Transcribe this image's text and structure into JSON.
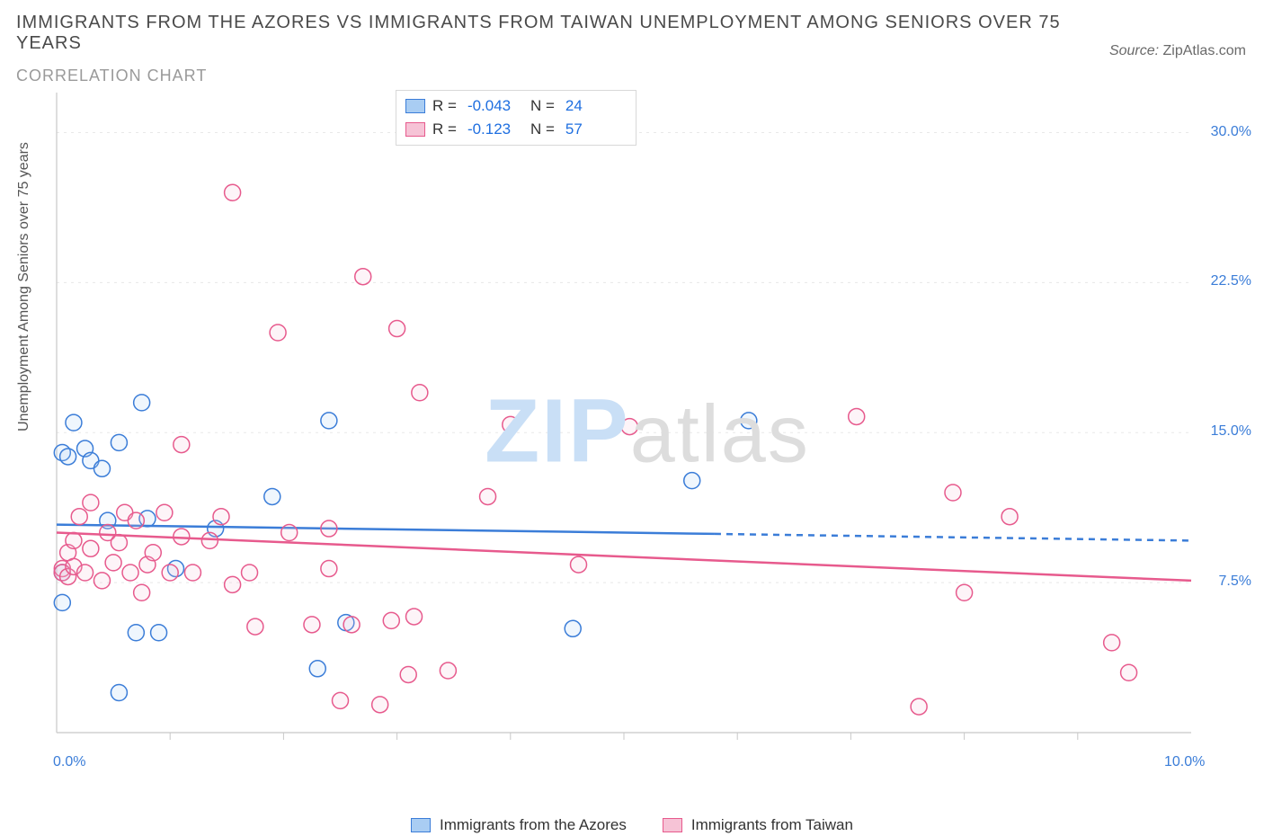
{
  "title": "IMMIGRANTS FROM THE AZORES VS IMMIGRANTS FROM TAIWAN UNEMPLOYMENT AMONG SENIORS OVER 75 YEARS",
  "subtitle": "CORRELATION CHART",
  "source_label": "Source:",
  "source_name": "ZipAtlas.com",
  "ylabel": "Unemployment Among Seniors over 75 years",
  "watermark_a": "ZIP",
  "watermark_b": "atlas",
  "chart": {
    "type": "scatter",
    "xlim": [
      0.0,
      10.0
    ],
    "ylim": [
      0.0,
      32.0
    ],
    "x_ticks": [
      0.0,
      10.0
    ],
    "x_tick_labels": [
      "0.0%",
      "10.0%"
    ],
    "y_ticks": [
      7.5,
      15.0,
      22.5,
      30.0
    ],
    "y_tick_labels": [
      "7.5%",
      "15.0%",
      "22.5%",
      "30.0%"
    ],
    "grid_color": "#e8e8e8",
    "axis_color": "#c8c8c8",
    "tick_label_color": "#3b7dd8",
    "background_color": "#ffffff",
    "marker_radius": 9,
    "marker_stroke_width": 1.5,
    "marker_fill_opacity": 0.18,
    "line_width": 2.5,
    "series": [
      {
        "key": "azores",
        "label": "Immigrants from the Azores",
        "color_stroke": "#3b7dd8",
        "color_fill": "#a9cdf3",
        "R": "-0.043",
        "N": "24",
        "trend": {
          "y_at_x0": 10.4,
          "y_at_x10": 9.6,
          "solid_until_x": 5.8
        },
        "points": [
          {
            "x": 0.05,
            "y": 8.0
          },
          {
            "x": 0.05,
            "y": 14.0
          },
          {
            "x": 0.1,
            "y": 13.8
          },
          {
            "x": 0.15,
            "y": 15.5
          },
          {
            "x": 0.25,
            "y": 14.2
          },
          {
            "x": 0.3,
            "y": 13.6
          },
          {
            "x": 0.45,
            "y": 10.6
          },
          {
            "x": 0.55,
            "y": 2.0
          },
          {
            "x": 0.55,
            "y": 14.5
          },
          {
            "x": 0.7,
            "y": 5.0
          },
          {
            "x": 0.75,
            "y": 16.5
          },
          {
            "x": 0.8,
            "y": 10.7
          },
          {
            "x": 0.9,
            "y": 5.0
          },
          {
            "x": 1.05,
            "y": 8.2
          },
          {
            "x": 1.4,
            "y": 10.2
          },
          {
            "x": 1.9,
            "y": 11.8
          },
          {
            "x": 2.3,
            "y": 3.2
          },
          {
            "x": 2.55,
            "y": 5.5
          },
          {
            "x": 2.4,
            "y": 15.6
          },
          {
            "x": 4.55,
            "y": 5.2
          },
          {
            "x": 5.6,
            "y": 12.6
          },
          {
            "x": 6.1,
            "y": 15.6
          },
          {
            "x": 0.05,
            "y": 6.5
          },
          {
            "x": 0.4,
            "y": 13.2
          }
        ]
      },
      {
        "key": "taiwan",
        "label": "Immigrants from Taiwan",
        "color_stroke": "#e75a8d",
        "color_fill": "#f6c3d6",
        "R": "-0.123",
        "N": "57",
        "trend": {
          "y_at_x0": 10.0,
          "y_at_x10": 7.6,
          "solid_until_x": 10.0
        },
        "points": [
          {
            "x": 0.05,
            "y": 8.2
          },
          {
            "x": 0.05,
            "y": 8.0
          },
          {
            "x": 0.1,
            "y": 7.8
          },
          {
            "x": 0.1,
            "y": 9.0
          },
          {
            "x": 0.15,
            "y": 8.3
          },
          {
            "x": 0.15,
            "y": 9.6
          },
          {
            "x": 0.2,
            "y": 10.8
          },
          {
            "x": 0.25,
            "y": 8.0
          },
          {
            "x": 0.3,
            "y": 9.2
          },
          {
            "x": 0.3,
            "y": 11.5
          },
          {
            "x": 0.4,
            "y": 7.6
          },
          {
            "x": 0.45,
            "y": 10.0
          },
          {
            "x": 0.5,
            "y": 8.5
          },
          {
            "x": 0.55,
            "y": 9.5
          },
          {
            "x": 0.6,
            "y": 11.0
          },
          {
            "x": 0.65,
            "y": 8.0
          },
          {
            "x": 0.7,
            "y": 10.6
          },
          {
            "x": 0.75,
            "y": 7.0
          },
          {
            "x": 0.8,
            "y": 8.4
          },
          {
            "x": 0.85,
            "y": 9.0
          },
          {
            "x": 0.95,
            "y": 11.0
          },
          {
            "x": 1.0,
            "y": 8.0
          },
          {
            "x": 1.1,
            "y": 9.8
          },
          {
            "x": 1.1,
            "y": 14.4
          },
          {
            "x": 1.2,
            "y": 8.0
          },
          {
            "x": 1.35,
            "y": 9.6
          },
          {
            "x": 1.45,
            "y": 10.8
          },
          {
            "x": 1.55,
            "y": 7.4
          },
          {
            "x": 1.55,
            "y": 27.0
          },
          {
            "x": 1.7,
            "y": 8.0
          },
          {
            "x": 1.75,
            "y": 5.3
          },
          {
            "x": 1.95,
            "y": 20.0
          },
          {
            "x": 2.05,
            "y": 10.0
          },
          {
            "x": 2.25,
            "y": 5.4
          },
          {
            "x": 2.4,
            "y": 8.2
          },
          {
            "x": 2.4,
            "y": 10.2
          },
          {
            "x": 2.5,
            "y": 1.6
          },
          {
            "x": 2.6,
            "y": 5.4
          },
          {
            "x": 2.7,
            "y": 22.8
          },
          {
            "x": 2.85,
            "y": 1.4
          },
          {
            "x": 2.95,
            "y": 5.6
          },
          {
            "x": 3.0,
            "y": 20.2
          },
          {
            "x": 3.1,
            "y": 2.9
          },
          {
            "x": 3.15,
            "y": 5.8
          },
          {
            "x": 3.2,
            "y": 17.0
          },
          {
            "x": 3.45,
            "y": 3.1
          },
          {
            "x": 3.8,
            "y": 11.8
          },
          {
            "x": 4.0,
            "y": 15.4
          },
          {
            "x": 4.6,
            "y": 8.4
          },
          {
            "x": 5.05,
            "y": 15.3
          },
          {
            "x": 7.05,
            "y": 15.8
          },
          {
            "x": 7.6,
            "y": 1.3
          },
          {
            "x": 7.9,
            "y": 12.0
          },
          {
            "x": 8.0,
            "y": 7.0
          },
          {
            "x": 8.4,
            "y": 10.8
          },
          {
            "x": 9.3,
            "y": 4.5
          },
          {
            "x": 9.45,
            "y": 3.0
          }
        ]
      }
    ],
    "legend_top": {
      "r_label": "R =",
      "n_label": "N ="
    }
  }
}
